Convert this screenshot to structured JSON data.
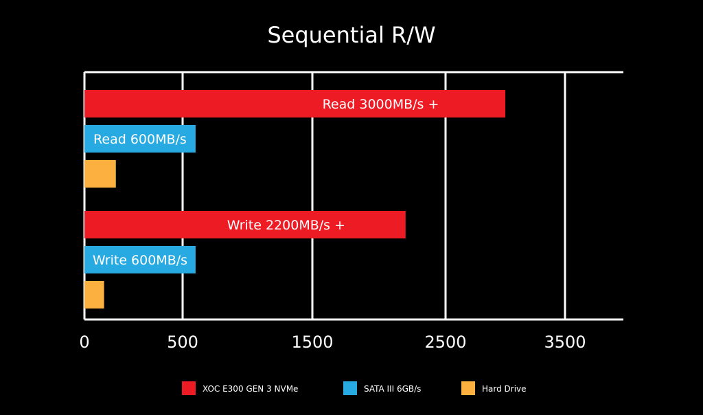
{
  "chart_data": {
    "type": "bar",
    "orientation": "horizontal",
    "title": "Sequential R/W",
    "groups": [
      "Read",
      "Write"
    ],
    "series": [
      {
        "name": "XOC E300 GEN 3 NVMe",
        "color": "#ed1c24",
        "values": [
          3000,
          2200
        ],
        "labels": [
          "Read 3000MB/s +",
          "Write 2200MB/s +"
        ]
      },
      {
        "name": "SATA  III 6GB/s",
        "color": "#27aae1",
        "values": [
          600,
          600
        ],
        "labels": [
          "Read 600MB/s",
          "Write 600MB/s"
        ]
      },
      {
        "name": "Hard Drive",
        "color": "#fbb040",
        "values": [
          160,
          100
        ],
        "labels": [
          "",
          ""
        ]
      }
    ],
    "ticks": [
      {
        "label": "0",
        "value": 0
      },
      {
        "label": "500",
        "value": 500
      },
      {
        "label": "1500",
        "value": 1500
      },
      {
        "label": "2500",
        "value": 2500
      },
      {
        "label": "3500",
        "value": 3500
      }
    ],
    "legend": "bottom",
    "grid": true
  }
}
